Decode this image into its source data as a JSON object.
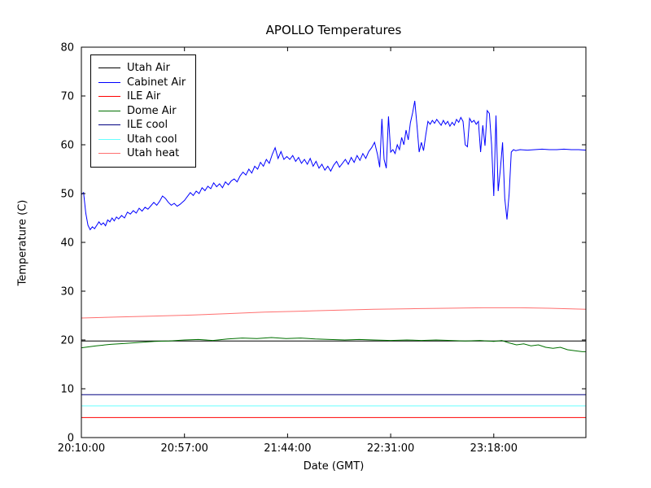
{
  "chart_data": {
    "type": "line",
    "title": "APOLLO Temperatures",
    "xlabel": "Date (GMT)",
    "ylabel": "Temperature (C)",
    "ylim": [
      0,
      80
    ],
    "yticks": [
      0,
      10,
      20,
      30,
      40,
      50,
      60,
      70,
      80
    ],
    "x_range": [
      0,
      13800
    ],
    "x_unit": "seconds since 20:10:00 GMT",
    "xticks": [
      {
        "t": 0,
        "label": "20:10:00"
      },
      {
        "t": 2820,
        "label": "20:57:00"
      },
      {
        "t": 5640,
        "label": "21:44:00"
      },
      {
        "t": 8460,
        "label": "22:31:00"
      },
      {
        "t": 11280,
        "label": "23:18:00"
      }
    ],
    "grid": false,
    "legend_position": "upper left",
    "series": [
      {
        "name": "Utah Air",
        "color": "#000000",
        "points": [
          [
            0,
            19.8
          ],
          [
            13800,
            19.8
          ]
        ]
      },
      {
        "name": "Cabinet Air",
        "color": "#0000ff",
        "points": [
          [
            0,
            49.8
          ],
          [
            60,
            50.2
          ],
          [
            120,
            46.0
          ],
          [
            180,
            43.5
          ],
          [
            240,
            42.6
          ],
          [
            300,
            43.2
          ],
          [
            360,
            42.8
          ],
          [
            420,
            43.5
          ],
          [
            480,
            44.2
          ],
          [
            540,
            43.6
          ],
          [
            600,
            44.0
          ],
          [
            660,
            43.4
          ],
          [
            720,
            44.6
          ],
          [
            780,
            44.2
          ],
          [
            840,
            45.0
          ],
          [
            900,
            44.4
          ],
          [
            960,
            45.2
          ],
          [
            1020,
            44.8
          ],
          [
            1100,
            45.5
          ],
          [
            1180,
            45.0
          ],
          [
            1260,
            46.2
          ],
          [
            1340,
            45.8
          ],
          [
            1420,
            46.5
          ],
          [
            1500,
            46.0
          ],
          [
            1580,
            47.0
          ],
          [
            1660,
            46.4
          ],
          [
            1740,
            47.2
          ],
          [
            1820,
            46.8
          ],
          [
            1900,
            47.5
          ],
          [
            1980,
            48.2
          ],
          [
            2060,
            47.6
          ],
          [
            2140,
            48.4
          ],
          [
            2220,
            49.5
          ],
          [
            2300,
            49.0
          ],
          [
            2380,
            48.2
          ],
          [
            2460,
            47.6
          ],
          [
            2540,
            48.0
          ],
          [
            2620,
            47.4
          ],
          [
            2700,
            47.8
          ],
          [
            2820,
            48.6
          ],
          [
            2900,
            49.4
          ],
          [
            2980,
            50.2
          ],
          [
            3060,
            49.6
          ],
          [
            3140,
            50.5
          ],
          [
            3220,
            50.0
          ],
          [
            3300,
            51.2
          ],
          [
            3380,
            50.6
          ],
          [
            3460,
            51.5
          ],
          [
            3540,
            51.0
          ],
          [
            3620,
            52.2
          ],
          [
            3700,
            51.4
          ],
          [
            3780,
            52.0
          ],
          [
            3860,
            51.2
          ],
          [
            3940,
            52.4
          ],
          [
            4020,
            51.8
          ],
          [
            4100,
            52.6
          ],
          [
            4180,
            53.0
          ],
          [
            4260,
            52.4
          ],
          [
            4340,
            53.6
          ],
          [
            4420,
            54.4
          ],
          [
            4500,
            53.8
          ],
          [
            4580,
            55.0
          ],
          [
            4660,
            54.2
          ],
          [
            4740,
            55.6
          ],
          [
            4820,
            55.0
          ],
          [
            4900,
            56.4
          ],
          [
            4980,
            55.6
          ],
          [
            5060,
            57.0
          ],
          [
            5140,
            56.2
          ],
          [
            5220,
            58.0
          ],
          [
            5300,
            59.4
          ],
          [
            5380,
            57.2
          ],
          [
            5460,
            58.6
          ],
          [
            5540,
            57.0
          ],
          [
            5620,
            57.6
          ],
          [
            5700,
            57.0
          ],
          [
            5780,
            57.8
          ],
          [
            5860,
            56.6
          ],
          [
            5940,
            57.4
          ],
          [
            6020,
            56.2
          ],
          [
            6100,
            57.0
          ],
          [
            6180,
            56.0
          ],
          [
            6260,
            57.2
          ],
          [
            6340,
            55.6
          ],
          [
            6420,
            56.6
          ],
          [
            6500,
            55.2
          ],
          [
            6580,
            56.0
          ],
          [
            6660,
            54.8
          ],
          [
            6740,
            55.6
          ],
          [
            6820,
            54.6
          ],
          [
            6900,
            55.8
          ],
          [
            6980,
            56.6
          ],
          [
            7060,
            55.4
          ],
          [
            7140,
            56.2
          ],
          [
            7220,
            57.0
          ],
          [
            7300,
            56.0
          ],
          [
            7380,
            57.4
          ],
          [
            7460,
            56.4
          ],
          [
            7540,
            57.8
          ],
          [
            7620,
            56.8
          ],
          [
            7700,
            58.2
          ],
          [
            7780,
            57.2
          ],
          [
            7860,
            58.6
          ],
          [
            7940,
            59.4
          ],
          [
            8020,
            60.5
          ],
          [
            8100,
            58.0
          ],
          [
            8160,
            55.4
          ],
          [
            8220,
            65.3
          ],
          [
            8280,
            57.0
          ],
          [
            8340,
            55.2
          ],
          [
            8400,
            65.8
          ],
          [
            8460,
            58.5
          ],
          [
            8520,
            59.0
          ],
          [
            8580,
            58.2
          ],
          [
            8640,
            60.0
          ],
          [
            8700,
            59.0
          ],
          [
            8760,
            61.5
          ],
          [
            8820,
            60.0
          ],
          [
            8880,
            63.0
          ],
          [
            8940,
            61.0
          ],
          [
            9000,
            64.5
          ],
          [
            9060,
            66.5
          ],
          [
            9120,
            69.0
          ],
          [
            9180,
            64.0
          ],
          [
            9240,
            58.5
          ],
          [
            9300,
            60.5
          ],
          [
            9360,
            58.8
          ],
          [
            9420,
            62.0
          ],
          [
            9480,
            64.8
          ],
          [
            9540,
            64.2
          ],
          [
            9600,
            65.0
          ],
          [
            9660,
            64.4
          ],
          [
            9720,
            65.2
          ],
          [
            9780,
            64.6
          ],
          [
            9840,
            64.0
          ],
          [
            9900,
            65.0
          ],
          [
            9960,
            64.2
          ],
          [
            10020,
            64.8
          ],
          [
            10080,
            63.8
          ],
          [
            10140,
            64.6
          ],
          [
            10200,
            64.0
          ],
          [
            10260,
            65.2
          ],
          [
            10320,
            64.6
          ],
          [
            10380,
            65.6
          ],
          [
            10440,
            64.8
          ],
          [
            10500,
            60.0
          ],
          [
            10560,
            59.6
          ],
          [
            10620,
            65.4
          ],
          [
            10680,
            64.6
          ],
          [
            10740,
            65.0
          ],
          [
            10800,
            64.2
          ],
          [
            10860,
            64.8
          ],
          [
            10920,
            58.5
          ],
          [
            10980,
            64.0
          ],
          [
            11040,
            59.8
          ],
          [
            11100,
            67.0
          ],
          [
            11160,
            66.4
          ],
          [
            11220,
            60.0
          ],
          [
            11280,
            49.5
          ],
          [
            11340,
            66.0
          ],
          [
            11400,
            50.5
          ],
          [
            11460,
            55.0
          ],
          [
            11520,
            60.5
          ],
          [
            11580,
            49.0
          ],
          [
            11640,
            44.7
          ],
          [
            11700,
            50.0
          ],
          [
            11760,
            58.5
          ],
          [
            11820,
            59.0
          ],
          [
            11880,
            58.8
          ],
          [
            12000,
            59.0
          ],
          [
            12200,
            58.9
          ],
          [
            12400,
            59.0
          ],
          [
            12600,
            59.1
          ],
          [
            12800,
            59.0
          ],
          [
            13000,
            59.0
          ],
          [
            13200,
            59.1
          ],
          [
            13400,
            59.0
          ],
          [
            13600,
            59.0
          ],
          [
            13800,
            58.9
          ]
        ]
      },
      {
        "name": "ILE Air",
        "color": "#ff0000",
        "points": [
          [
            0,
            4.1
          ],
          [
            13800,
            4.1
          ]
        ]
      },
      {
        "name": "Dome Air",
        "color": "#007000",
        "points": [
          [
            0,
            18.4
          ],
          [
            400,
            18.8
          ],
          [
            800,
            19.1
          ],
          [
            1200,
            19.3
          ],
          [
            1600,
            19.5
          ],
          [
            2000,
            19.7
          ],
          [
            2400,
            19.8
          ],
          [
            2820,
            20.0
          ],
          [
            3200,
            20.1
          ],
          [
            3600,
            19.9
          ],
          [
            4000,
            20.2
          ],
          [
            4400,
            20.4
          ],
          [
            4800,
            20.3
          ],
          [
            5200,
            20.5
          ],
          [
            5600,
            20.3
          ],
          [
            6000,
            20.4
          ],
          [
            6400,
            20.2
          ],
          [
            6800,
            20.1
          ],
          [
            7200,
            20.0
          ],
          [
            7600,
            20.1
          ],
          [
            8000,
            20.0
          ],
          [
            8460,
            19.9
          ],
          [
            8900,
            20.0
          ],
          [
            9300,
            19.9
          ],
          [
            9700,
            20.0
          ],
          [
            10100,
            19.9
          ],
          [
            10500,
            19.8
          ],
          [
            10900,
            19.9
          ],
          [
            11280,
            19.7
          ],
          [
            11500,
            19.9
          ],
          [
            11700,
            19.4
          ],
          [
            11900,
            19.0
          ],
          [
            12100,
            19.2
          ],
          [
            12300,
            18.8
          ],
          [
            12500,
            19.0
          ],
          [
            12700,
            18.5
          ],
          [
            12900,
            18.3
          ],
          [
            13100,
            18.5
          ],
          [
            13300,
            18.0
          ],
          [
            13500,
            17.8
          ],
          [
            13700,
            17.6
          ],
          [
            13800,
            17.6
          ]
        ]
      },
      {
        "name": "ILE cool",
        "color": "#000080",
        "points": [
          [
            0,
            8.8
          ],
          [
            13800,
            8.8
          ]
        ]
      },
      {
        "name": "Utah cool",
        "color": "#66ffff",
        "points": [
          [
            0,
            6.5
          ],
          [
            13800,
            6.5
          ]
        ]
      },
      {
        "name": "Utah heat",
        "color": "#ff6f6f",
        "points": [
          [
            0,
            24.5
          ],
          [
            1000,
            24.7
          ],
          [
            2000,
            24.9
          ],
          [
            3000,
            25.1
          ],
          [
            4000,
            25.4
          ],
          [
            5000,
            25.7
          ],
          [
            6000,
            25.9
          ],
          [
            7000,
            26.1
          ],
          [
            8000,
            26.3
          ],
          [
            9000,
            26.4
          ],
          [
            10000,
            26.5
          ],
          [
            11000,
            26.6
          ],
          [
            12000,
            26.6
          ],
          [
            12800,
            26.5
          ],
          [
            13800,
            26.3
          ]
        ]
      }
    ]
  }
}
